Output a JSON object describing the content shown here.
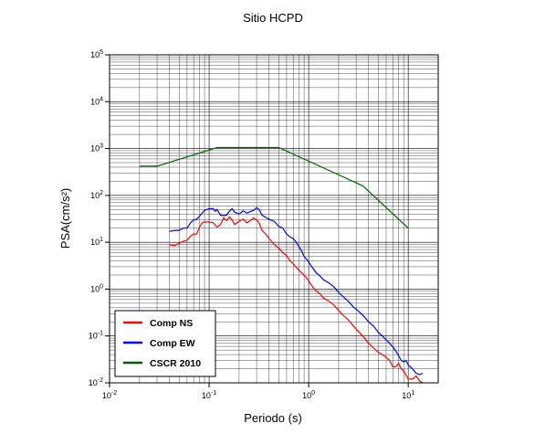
{
  "chart_data": {
    "type": "line",
    "title": "Sitio HCPD",
    "xlabel": "Periodo (s)",
    "ylabel": "PSA(cm/s²)",
    "xscale": "log",
    "yscale": "log",
    "xlim": [
      0.01,
      20
    ],
    "ylim": [
      0.01,
      100000
    ],
    "grid": true,
    "legend_position": "bottom-left",
    "x_tick_labels": [
      "10-2",
      "10-1",
      "100",
      "101"
    ],
    "y_tick_labels": [
      "10-2",
      "10-1",
      "100",
      "101",
      "102",
      "103",
      "104",
      "105"
    ],
    "series": [
      {
        "name": "Comp NS",
        "color": "#ff0000",
        "points": [
          [
            0.04,
            8.8
          ],
          [
            0.045,
            8.5
          ],
          [
            0.05,
            9.5
          ],
          [
            0.055,
            10.5
          ],
          [
            0.06,
            11
          ],
          [
            0.065,
            13.5
          ],
          [
            0.07,
            15
          ],
          [
            0.075,
            15
          ],
          [
            0.08,
            21
          ],
          [
            0.085,
            26
          ],
          [
            0.09,
            27
          ],
          [
            0.1,
            27
          ],
          [
            0.11,
            26
          ],
          [
            0.12,
            21
          ],
          [
            0.13,
            24
          ],
          [
            0.14,
            33
          ],
          [
            0.15,
            29
          ],
          [
            0.16,
            35
          ],
          [
            0.17,
            30
          ],
          [
            0.18,
            24
          ],
          [
            0.2,
            28
          ],
          [
            0.22,
            31
          ],
          [
            0.24,
            26
          ],
          [
            0.26,
            29
          ],
          [
            0.28,
            33
          ],
          [
            0.3,
            30
          ],
          [
            0.32,
            25
          ],
          [
            0.34,
            18
          ],
          [
            0.37,
            15
          ],
          [
            0.4,
            12
          ],
          [
            0.45,
            9
          ],
          [
            0.5,
            7.5
          ],
          [
            0.55,
            6
          ],
          [
            0.6,
            5.2
          ],
          [
            0.65,
            4
          ],
          [
            0.7,
            3.5
          ],
          [
            0.8,
            2.5
          ],
          [
            0.9,
            2.0
          ],
          [
            1.0,
            1.5
          ],
          [
            1.1,
            1.1
          ],
          [
            1.2,
            0.9
          ],
          [
            1.3,
            0.8
          ],
          [
            1.4,
            0.65
          ],
          [
            1.6,
            0.55
          ],
          [
            1.8,
            0.45
          ],
          [
            2.0,
            0.35
          ],
          [
            2.2,
            0.28
          ],
          [
            2.4,
            0.24
          ],
          [
            2.6,
            0.2
          ],
          [
            3.0,
            0.14
          ],
          [
            3.5,
            0.1
          ],
          [
            4.0,
            0.07
          ],
          [
            4.5,
            0.055
          ],
          [
            5.0,
            0.045
          ],
          [
            5.5,
            0.04
          ],
          [
            6.0,
            0.035
          ],
          [
            6.5,
            0.03
          ],
          [
            7.0,
            0.022
          ],
          [
            7.5,
            0.022
          ],
          [
            8.0,
            0.026
          ],
          [
            8.5,
            0.02
          ],
          [
            9.0,
            0.018
          ],
          [
            10.0,
            0.012
          ],
          [
            11.0,
            0.012
          ],
          [
            12.0,
            0.014
          ],
          [
            13.0,
            0.011
          ],
          [
            14.0,
            0.01
          ]
        ]
      },
      {
        "name": "Comp EW",
        "color": "#0000ff",
        "points": [
          [
            0.04,
            17
          ],
          [
            0.045,
            18
          ],
          [
            0.05,
            18
          ],
          [
            0.055,
            20
          ],
          [
            0.06,
            20
          ],
          [
            0.065,
            26
          ],
          [
            0.07,
            30
          ],
          [
            0.075,
            31
          ],
          [
            0.08,
            36
          ],
          [
            0.09,
            48
          ],
          [
            0.1,
            52
          ],
          [
            0.11,
            52
          ],
          [
            0.115,
            46
          ],
          [
            0.12,
            50
          ],
          [
            0.13,
            38
          ],
          [
            0.14,
            37
          ],
          [
            0.15,
            38
          ],
          [
            0.16,
            46
          ],
          [
            0.17,
            52
          ],
          [
            0.18,
            44
          ],
          [
            0.2,
            40
          ],
          [
            0.22,
            47
          ],
          [
            0.24,
            42
          ],
          [
            0.26,
            45
          ],
          [
            0.28,
            48
          ],
          [
            0.3,
            55
          ],
          [
            0.32,
            49
          ],
          [
            0.34,
            38
          ],
          [
            0.37,
            34
          ],
          [
            0.4,
            31
          ],
          [
            0.45,
            28
          ],
          [
            0.5,
            22
          ],
          [
            0.55,
            20
          ],
          [
            0.6,
            15
          ],
          [
            0.65,
            13
          ],
          [
            0.7,
            12
          ],
          [
            0.75,
            10
          ],
          [
            0.8,
            8
          ],
          [
            0.85,
            6.5
          ],
          [
            0.9,
            5
          ],
          [
            1.0,
            3.8
          ],
          [
            1.1,
            2.8
          ],
          [
            1.2,
            2.2
          ],
          [
            1.3,
            1.9
          ],
          [
            1.4,
            1.6
          ],
          [
            1.6,
            1.35
          ],
          [
            1.8,
            1.1
          ],
          [
            2.0,
            0.85
          ],
          [
            2.2,
            0.7
          ],
          [
            2.5,
            0.55
          ],
          [
            2.8,
            0.42
          ],
          [
            3.2,
            0.33
          ],
          [
            3.6,
            0.26
          ],
          [
            4.0,
            0.2
          ],
          [
            4.5,
            0.16
          ],
          [
            5.0,
            0.12
          ],
          [
            5.5,
            0.1
          ],
          [
            6.0,
            0.082
          ],
          [
            6.5,
            0.07
          ],
          [
            7.0,
            0.058
          ],
          [
            7.5,
            0.048
          ],
          [
            8.0,
            0.038
          ],
          [
            8.5,
            0.03
          ],
          [
            9.0,
            0.028
          ],
          [
            9.5,
            0.03
          ],
          [
            10.0,
            0.024
          ],
          [
            11.0,
            0.02
          ],
          [
            12.0,
            0.016
          ],
          [
            13.0,
            0.015
          ],
          [
            14.0,
            0.016
          ]
        ]
      },
      {
        "name": "CSCR 2010",
        "color": "#006400",
        "points": [
          [
            0.02,
            420
          ],
          [
            0.03,
            420
          ],
          [
            0.12,
            1050
          ],
          [
            0.5,
            1050
          ],
          [
            3.5,
            160
          ],
          [
            10.0,
            20
          ]
        ]
      }
    ]
  }
}
